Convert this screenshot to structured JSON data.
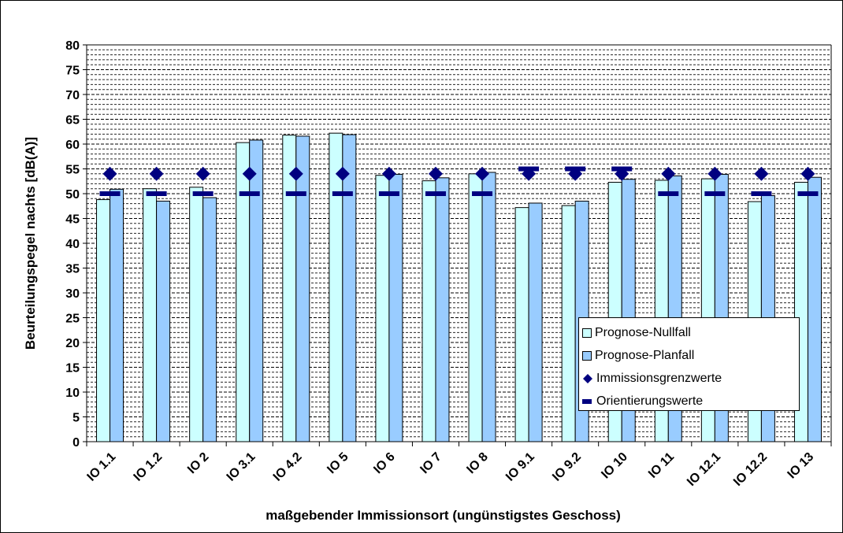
{
  "chart_data": {
    "type": "bar",
    "ylabel": "Beurteilungspegel nachts [dB(A)]",
    "xlabel": "maßgebender Immissionsort (ungünstigstes Geschoss)",
    "ylim": [
      0,
      80
    ],
    "ytick_step": 5,
    "grid": "dashed horizontal",
    "legend_position": "bottom-right",
    "categories": [
      "IO 1.1",
      "IO 1.2",
      "IO 2",
      "IO 3.1",
      "IO 4.2",
      "IO 5",
      "IO 6",
      "IO 7",
      "IO 8",
      "IO 9.1",
      "IO 9.2",
      "IO 10",
      "IO 11",
      "IO 12.1",
      "IO 12.2",
      "IO 13"
    ],
    "series": [
      {
        "name": "Prognose-Nullfall",
        "kind": "bar",
        "color": "#ccffff",
        "values": [
          48.8,
          51.0,
          51.3,
          60.3,
          61.8,
          62.2,
          53.7,
          52.6,
          54.0,
          47.2,
          47.6,
          52.3,
          52.7,
          53.0,
          48.4,
          52.3
        ]
      },
      {
        "name": "Prognose-Planfall",
        "kind": "bar",
        "color": "#99ccff",
        "values": [
          50.9,
          48.5,
          49.2,
          60.8,
          61.6,
          61.9,
          53.9,
          53.2,
          54.3,
          48.1,
          48.5,
          52.9,
          53.6,
          53.9,
          49.6,
          53.3
        ]
      },
      {
        "name": "Immissionsgrenzwerte",
        "kind": "diamond",
        "color": "#000080",
        "values": [
          54,
          54,
          54,
          54,
          54,
          54,
          54,
          54,
          54,
          54,
          54,
          54,
          54,
          54,
          54,
          54
        ]
      },
      {
        "name": "Orientierungswerte",
        "kind": "dash",
        "color": "#000080",
        "values": [
          50,
          50,
          50,
          50,
          50,
          50,
          50,
          50,
          50,
          55,
          55,
          55,
          50,
          50,
          50,
          50
        ]
      }
    ]
  }
}
